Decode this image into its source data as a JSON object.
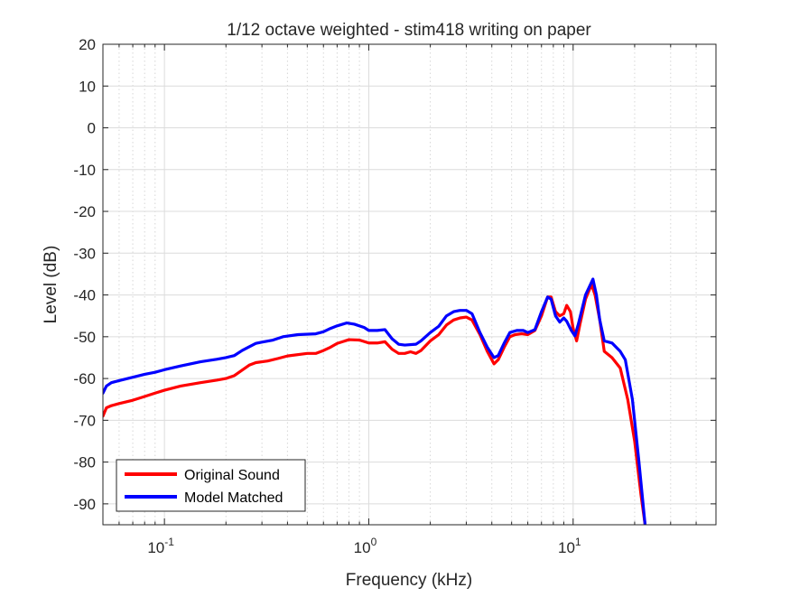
{
  "chart_data": {
    "type": "line",
    "title": "1/12 octave weighted - stim418 writing on paper",
    "xlabel": "Frequency (kHz)",
    "ylabel": "Level (dB)",
    "xscale": "log",
    "xlim": [
      0.05,
      50
    ],
    "ylim": [
      -95,
      20
    ],
    "yticks": [
      20,
      10,
      0,
      -10,
      -20,
      -30,
      -40,
      -50,
      -60,
      -70,
      -80,
      -90
    ],
    "xticks": [
      {
        "value": 0.1,
        "base": "10",
        "exp": "-1"
      },
      {
        "value": 1,
        "base": "10",
        "exp": "0"
      },
      {
        "value": 10,
        "base": "10",
        "exp": "1"
      }
    ],
    "grid": true,
    "minor_grid": true,
    "legend_position": "bottom-left",
    "series": [
      {
        "name": "Original Sound",
        "color": "#ff0000",
        "points": [
          [
            0.05,
            -69
          ],
          [
            0.052,
            -67
          ],
          [
            0.055,
            -66.5
          ],
          [
            0.06,
            -66
          ],
          [
            0.07,
            -65.2
          ],
          [
            0.08,
            -64.3
          ],
          [
            0.09,
            -63.5
          ],
          [
            0.1,
            -62.8
          ],
          [
            0.12,
            -61.8
          ],
          [
            0.15,
            -61
          ],
          [
            0.18,
            -60.4
          ],
          [
            0.2,
            -60
          ],
          [
            0.22,
            -59.3
          ],
          [
            0.24,
            -58
          ],
          [
            0.26,
            -56.8
          ],
          [
            0.28,
            -56.2
          ],
          [
            0.32,
            -55.8
          ],
          [
            0.36,
            -55.2
          ],
          [
            0.4,
            -54.6
          ],
          [
            0.5,
            -54
          ],
          [
            0.55,
            -54
          ],
          [
            0.6,
            -53.3
          ],
          [
            0.65,
            -52.5
          ],
          [
            0.7,
            -51.6
          ],
          [
            0.8,
            -50.7
          ],
          [
            0.9,
            -50.8
          ],
          [
            1.0,
            -51.5
          ],
          [
            1.1,
            -51.5
          ],
          [
            1.2,
            -51.2
          ],
          [
            1.3,
            -53
          ],
          [
            1.4,
            -54
          ],
          [
            1.5,
            -54
          ],
          [
            1.6,
            -53.6
          ],
          [
            1.7,
            -54
          ],
          [
            1.8,
            -53.3
          ],
          [
            2.0,
            -51
          ],
          [
            2.2,
            -49.5
          ],
          [
            2.4,
            -47.2
          ],
          [
            2.6,
            -46
          ],
          [
            2.8,
            -45.5
          ],
          [
            3.0,
            -45.3
          ],
          [
            3.2,
            -46
          ],
          [
            3.5,
            -49.5
          ],
          [
            3.8,
            -53.5
          ],
          [
            4.1,
            -56.5
          ],
          [
            4.3,
            -55.5
          ],
          [
            4.6,
            -52.5
          ],
          [
            4.9,
            -50
          ],
          [
            5.2,
            -49.5
          ],
          [
            5.6,
            -49.3
          ],
          [
            6.0,
            -49.5
          ],
          [
            6.5,
            -48.5
          ],
          [
            7.0,
            -45
          ],
          [
            7.5,
            -40.5
          ],
          [
            7.8,
            -40.5
          ],
          [
            8.2,
            -44
          ],
          [
            8.6,
            -45
          ],
          [
            9.0,
            -44.5
          ],
          [
            9.3,
            -42.5
          ],
          [
            9.7,
            -44
          ],
          [
            10.0,
            -48
          ],
          [
            10.4,
            -51
          ],
          [
            10.8,
            -47
          ],
          [
            11.5,
            -41
          ],
          [
            12.3,
            -37.5
          ],
          [
            12.8,
            -40
          ],
          [
            13.5,
            -46
          ],
          [
            14.2,
            -53.5
          ],
          [
            15.5,
            -55
          ],
          [
            17.0,
            -57.5
          ],
          [
            18.5,
            -65
          ],
          [
            20.0,
            -75
          ],
          [
            21.5,
            -88
          ],
          [
            22.5,
            -95
          ]
        ]
      },
      {
        "name": "Model Matched",
        "color": "#0000ff",
        "points": [
          [
            0.05,
            -63.5
          ],
          [
            0.052,
            -61.8
          ],
          [
            0.055,
            -61
          ],
          [
            0.06,
            -60.5
          ],
          [
            0.07,
            -59.7
          ],
          [
            0.08,
            -59
          ],
          [
            0.09,
            -58.5
          ],
          [
            0.1,
            -57.9
          ],
          [
            0.12,
            -57
          ],
          [
            0.15,
            -56
          ],
          [
            0.18,
            -55.4
          ],
          [
            0.2,
            -55
          ],
          [
            0.22,
            -54.5
          ],
          [
            0.24,
            -53.3
          ],
          [
            0.26,
            -52.4
          ],
          [
            0.28,
            -51.6
          ],
          [
            0.3,
            -51.3
          ],
          [
            0.34,
            -50.8
          ],
          [
            0.38,
            -50
          ],
          [
            0.45,
            -49.5
          ],
          [
            0.55,
            -49.3
          ],
          [
            0.6,
            -48.8
          ],
          [
            0.65,
            -48
          ],
          [
            0.7,
            -47.4
          ],
          [
            0.78,
            -46.7
          ],
          [
            0.85,
            -47
          ],
          [
            0.95,
            -47.8
          ],
          [
            1.0,
            -48.5
          ],
          [
            1.1,
            -48.5
          ],
          [
            1.2,
            -48.3
          ],
          [
            1.3,
            -50.5
          ],
          [
            1.4,
            -51.8
          ],
          [
            1.5,
            -52
          ],
          [
            1.7,
            -51.8
          ],
          [
            1.8,
            -51
          ],
          [
            2.0,
            -49
          ],
          [
            2.2,
            -47.5
          ],
          [
            2.4,
            -45
          ],
          [
            2.6,
            -44
          ],
          [
            2.8,
            -43.7
          ],
          [
            3.0,
            -43.7
          ],
          [
            3.2,
            -44.5
          ],
          [
            3.5,
            -49
          ],
          [
            3.8,
            -52.5
          ],
          [
            4.1,
            -55
          ],
          [
            4.3,
            -54.5
          ],
          [
            4.6,
            -51.5
          ],
          [
            4.9,
            -49
          ],
          [
            5.3,
            -48.5
          ],
          [
            5.7,
            -48.5
          ],
          [
            6.0,
            -49
          ],
          [
            6.5,
            -48.3
          ],
          [
            7.0,
            -44
          ],
          [
            7.5,
            -40.5
          ],
          [
            7.8,
            -41
          ],
          [
            8.2,
            -45
          ],
          [
            8.6,
            -46.5
          ],
          [
            9.0,
            -45.5
          ],
          [
            9.3,
            -46.3
          ],
          [
            9.8,
            -48.5
          ],
          [
            10.2,
            -49.8
          ],
          [
            10.6,
            -47
          ],
          [
            11.5,
            -40
          ],
          [
            12.5,
            -36.2
          ],
          [
            13.0,
            -40
          ],
          [
            13.5,
            -46
          ],
          [
            14.2,
            -51
          ],
          [
            15.5,
            -51.5
          ],
          [
            17.0,
            -53.5
          ],
          [
            18.0,
            -55.5
          ],
          [
            19.5,
            -65
          ],
          [
            21.0,
            -80
          ],
          [
            22.5,
            -95
          ]
        ]
      }
    ]
  }
}
